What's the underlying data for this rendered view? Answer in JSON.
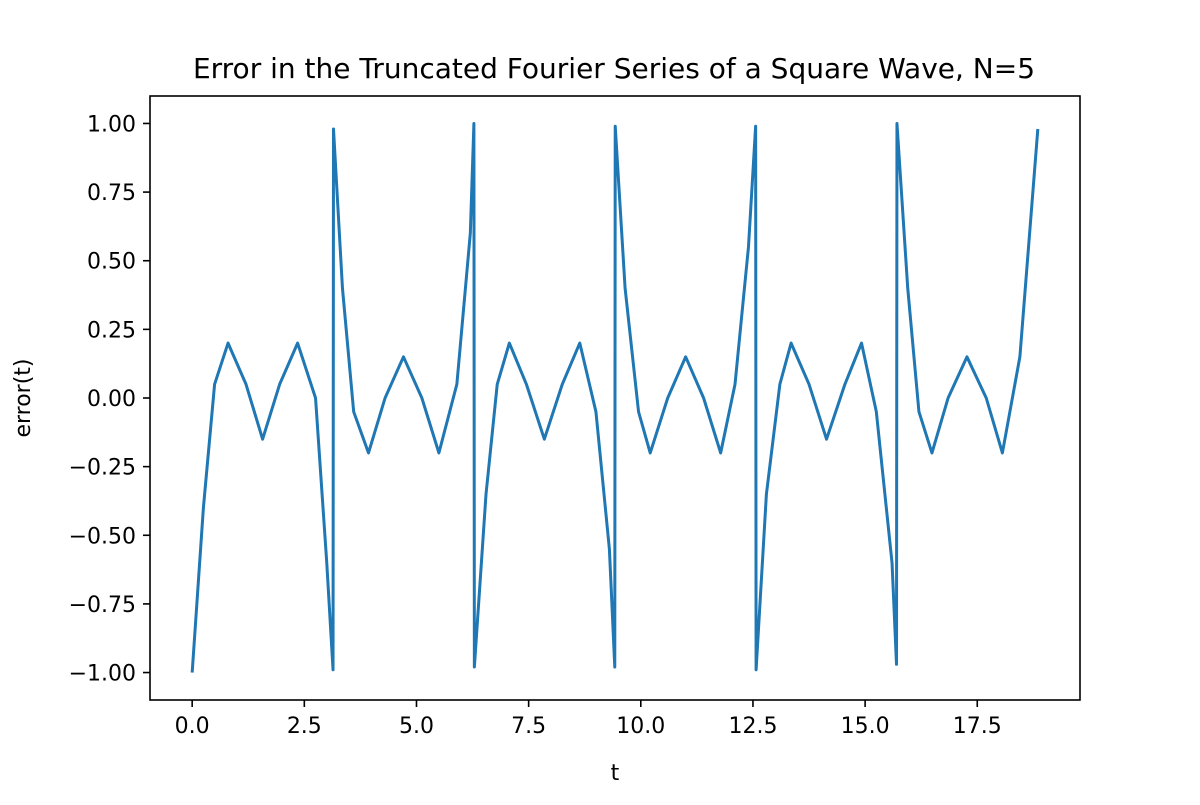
{
  "chart_data": {
    "type": "line",
    "title": "Error in the Truncated Fourier Series of a Square Wave, N=5",
    "xlabel": "t",
    "ylabel": "error(t)",
    "xlim": [
      -0.94,
      19.79
    ],
    "ylim": [
      -1.1,
      1.1
    ],
    "x_ticks": [
      0.0,
      2.5,
      5.0,
      7.5,
      10.0,
      12.5,
      15.0,
      17.5
    ],
    "x_tick_labels": [
      "0.0",
      "2.5",
      "5.0",
      "7.5",
      "10.0",
      "12.5",
      "15.0",
      "17.5"
    ],
    "y_ticks": [
      1.0,
      0.75,
      0.5,
      0.25,
      0.0,
      -0.25,
      -0.5,
      -0.75,
      -1.0
    ],
    "y_tick_labels": [
      "1.00",
      "0.75",
      "0.50",
      "0.25",
      "0.00",
      "−0.25",
      "−0.50",
      "−0.75",
      "−1.00"
    ],
    "grid": false,
    "legend": "none",
    "series": [
      {
        "color": "#1f77b4",
        "x": [
          0.0,
          0.25,
          0.5,
          0.8,
          1.2,
          1.57,
          1.95,
          2.35,
          2.75,
          3.0,
          3.14,
          3.15,
          3.35,
          3.6,
          3.93,
          4.3,
          4.71,
          5.12,
          5.5,
          5.9,
          6.2,
          6.28,
          6.29,
          6.55,
          6.8,
          7.07,
          7.45,
          7.85,
          8.25,
          8.64,
          9.0,
          9.3,
          9.42,
          9.43,
          9.65,
          9.95,
          10.21,
          10.6,
          11.0,
          11.4,
          11.78,
          12.1,
          12.4,
          12.56,
          12.57,
          12.8,
          13.1,
          13.35,
          13.75,
          14.14,
          14.55,
          14.92,
          15.25,
          15.6,
          15.7,
          15.71,
          15.95,
          16.2,
          16.49,
          16.85,
          17.27,
          17.7,
          18.06,
          18.45,
          18.85
        ],
        "y": [
          -1.0,
          -0.4,
          0.05,
          0.2,
          0.05,
          -0.15,
          0.05,
          0.2,
          0.0,
          -0.6,
          -0.99,
          0.98,
          0.4,
          -0.05,
          -0.2,
          0.0,
          0.15,
          0.0,
          -0.2,
          0.05,
          0.6,
          1.0,
          -0.98,
          -0.35,
          0.05,
          0.2,
          0.05,
          -0.15,
          0.05,
          0.2,
          -0.05,
          -0.55,
          -0.98,
          0.99,
          0.4,
          -0.05,
          -0.2,
          0.0,
          0.15,
          0.0,
          -0.2,
          0.05,
          0.55,
          0.99,
          -0.99,
          -0.35,
          0.05,
          0.2,
          0.05,
          -0.15,
          0.05,
          0.2,
          -0.05,
          -0.6,
          -0.97,
          1.0,
          0.4,
          -0.05,
          -0.2,
          0.0,
          0.15,
          0.0,
          -0.2,
          0.15,
          0.98
        ]
      }
    ]
  }
}
